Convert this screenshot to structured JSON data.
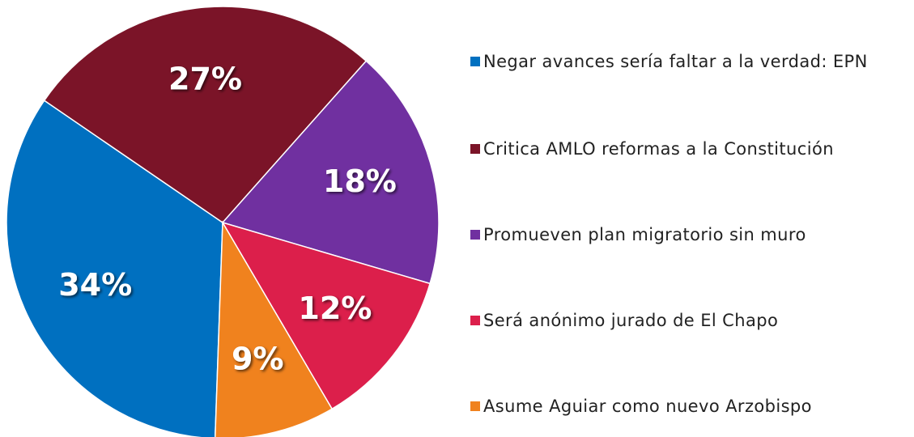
{
  "chart_data": {
    "type": "pie",
    "categories": [
      "Negar avances sería faltar a la verdad: EPN",
      "Critica AMLO reformas a la Constitución",
      "Promueven plan migratorio sin muro",
      "Será anónimo jurado de El Chapo",
      "Asume Aguiar como nuevo Arzobispo"
    ],
    "values": [
      34,
      27,
      18,
      12,
      9
    ],
    "value_labels": [
      "34%",
      "27%",
      "18%",
      "12%",
      "9%"
    ],
    "colors": [
      "#0070c0",
      "#7b1428",
      "#7030a0",
      "#dc1f4b",
      "#f0821e"
    ],
    "legend": "right"
  }
}
